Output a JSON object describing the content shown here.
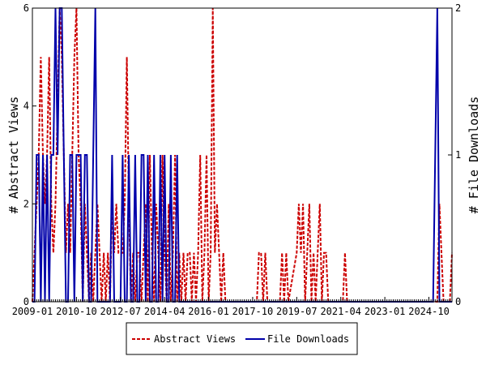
{
  "chart_data": {
    "type": "line",
    "xlabel": "",
    "ylabel_left": "# Abstract Views",
    "ylabel_right": "# File Downloads",
    "ylim_left": [
      0,
      6
    ],
    "ylim_right": [
      0,
      2
    ],
    "yticks_left": [
      "0",
      "2",
      "4",
      "6"
    ],
    "yticks_right": [
      "0",
      "1",
      "2"
    ],
    "xlim": [
      "2009-01",
      "2025-09"
    ],
    "xticks": [
      "2009-01",
      "2010-10",
      "2012-07",
      "2014-04",
      "2016-01",
      "2017-10",
      "2019-07",
      "2021-04",
      "2023-01",
      "2024-10"
    ],
    "grid": false,
    "legend_placement": "bottom-center",
    "series": [
      {
        "name": "Abstract Views",
        "axis": "left",
        "color": "#cc0000",
        "style": "dashed",
        "points": [
          [
            "2009-01",
            0
          ],
          [
            "2009-02",
            1
          ],
          [
            "2009-03",
            2
          ],
          [
            "2009-04",
            3
          ],
          [
            "2009-05",
            5
          ],
          [
            "2009-06",
            3
          ],
          [
            "2009-07",
            2
          ],
          [
            "2009-08",
            3
          ],
          [
            "2009-09",
            5
          ],
          [
            "2009-10",
            2
          ],
          [
            "2009-11",
            1
          ],
          [
            "2009-12",
            2
          ],
          [
            "2010-01",
            4
          ],
          [
            "2010-02",
            6
          ],
          [
            "2010-03",
            5
          ],
          [
            "2010-04",
            3
          ],
          [
            "2010-05",
            1
          ],
          [
            "2010-06",
            2
          ],
          [
            "2010-07",
            1
          ],
          [
            "2010-08",
            3
          ],
          [
            "2010-09",
            5
          ],
          [
            "2010-10",
            6
          ],
          [
            "2010-11",
            3
          ],
          [
            "2010-12",
            2
          ],
          [
            "2011-01",
            0
          ],
          [
            "2011-02",
            2
          ],
          [
            "2011-03",
            1
          ],
          [
            "2011-04",
            0
          ],
          [
            "2011-05",
            1
          ],
          [
            "2011-06",
            0
          ],
          [
            "2011-07",
            1
          ],
          [
            "2011-08",
            2
          ],
          [
            "2011-09",
            1
          ],
          [
            "2011-10",
            0
          ],
          [
            "2011-11",
            1
          ],
          [
            "2011-12",
            0
          ],
          [
            "2012-01",
            1
          ],
          [
            "2012-02",
            0
          ],
          [
            "2012-03",
            2
          ],
          [
            "2012-04",
            1
          ],
          [
            "2012-05",
            2
          ],
          [
            "2012-06",
            1
          ],
          [
            "2012-07",
            1
          ],
          [
            "2012-08",
            1
          ],
          [
            "2012-09",
            2
          ],
          [
            "2012-10",
            5
          ],
          [
            "2012-11",
            2
          ],
          [
            "2012-12",
            0
          ],
          [
            "2013-01",
            1
          ],
          [
            "2013-02",
            0
          ],
          [
            "2013-03",
            1
          ],
          [
            "2013-04",
            1
          ],
          [
            "2013-05",
            0
          ],
          [
            "2013-06",
            1
          ],
          [
            "2013-07",
            2
          ],
          [
            "2013-08",
            0
          ],
          [
            "2013-09",
            3
          ],
          [
            "2013-10",
            1
          ],
          [
            "2013-11",
            0
          ],
          [
            "2013-12",
            2
          ],
          [
            "2014-01",
            1
          ],
          [
            "2014-02",
            0
          ],
          [
            "2014-03",
            3
          ],
          [
            "2014-04",
            1
          ],
          [
            "2014-05",
            0
          ],
          [
            "2014-06",
            2
          ],
          [
            "2014-07",
            0
          ],
          [
            "2014-08",
            1
          ],
          [
            "2014-09",
            3
          ],
          [
            "2014-10",
            0
          ],
          [
            "2014-11",
            1
          ],
          [
            "2014-12",
            0
          ],
          [
            "2015-01",
            1
          ],
          [
            "2015-02",
            0
          ],
          [
            "2015-03",
            1
          ],
          [
            "2015-04",
            1
          ],
          [
            "2015-05",
            0
          ],
          [
            "2015-06",
            1
          ],
          [
            "2015-07",
            0
          ],
          [
            "2015-08",
            1
          ],
          [
            "2015-09",
            3
          ],
          [
            "2015-10",
            0
          ],
          [
            "2015-11",
            1
          ],
          [
            "2015-12",
            3
          ],
          [
            "2016-01",
            0
          ],
          [
            "2016-02",
            1
          ],
          [
            "2016-03",
            6
          ],
          [
            "2016-04",
            1
          ],
          [
            "2016-05",
            2
          ],
          [
            "2016-06",
            1
          ],
          [
            "2016-07",
            0
          ],
          [
            "2016-08",
            1
          ],
          [
            "2016-09",
            0
          ],
          [
            "2016-10",
            0
          ],
          [
            "2016-11",
            0
          ],
          [
            "2016-12",
            0
          ],
          [
            "2017-01",
            0
          ],
          [
            "2017-12",
            0
          ],
          [
            "2018-01",
            1
          ],
          [
            "2018-02",
            1
          ],
          [
            "2018-03",
            0
          ],
          [
            "2018-04",
            1
          ],
          [
            "2018-05",
            0
          ],
          [
            "2018-11",
            0
          ],
          [
            "2018-12",
            1
          ],
          [
            "2019-01",
            0
          ],
          [
            "2019-02",
            1
          ],
          [
            "2019-03",
            0
          ],
          [
            "2019-07",
            1
          ],
          [
            "2019-08",
            2
          ],
          [
            "2019-09",
            1
          ],
          [
            "2019-10",
            2
          ],
          [
            "2019-11",
            0
          ],
          [
            "2019-12",
            1
          ],
          [
            "2020-01",
            2
          ],
          [
            "2020-02",
            0
          ],
          [
            "2020-03",
            1
          ],
          [
            "2020-04",
            0
          ],
          [
            "2020-05",
            1
          ],
          [
            "2020-06",
            2
          ],
          [
            "2020-07",
            0
          ],
          [
            "2020-08",
            1
          ],
          [
            "2020-09",
            1
          ],
          [
            "2020-10",
            0
          ],
          [
            "2021-05",
            0
          ],
          [
            "2021-06",
            1
          ],
          [
            "2021-07",
            0
          ],
          [
            "2025-02",
            0
          ],
          [
            "2025-03",
            2
          ],
          [
            "2025-04",
            1
          ],
          [
            "2025-05",
            0
          ],
          [
            "2025-08",
            0
          ],
          [
            "2025-09",
            1
          ]
        ]
      },
      {
        "name": "File Downloads",
        "axis": "right",
        "color": "#0000aa",
        "style": "solid",
        "points": [
          [
            "2009-01",
            0
          ],
          [
            "2009-02",
            0
          ],
          [
            "2009-03",
            1
          ],
          [
            "2009-04",
            1
          ],
          [
            "2009-05",
            0
          ],
          [
            "2009-06",
            1
          ],
          [
            "2009-07",
            0
          ],
          [
            "2009-08",
            1
          ],
          [
            "2009-09",
            0
          ],
          [
            "2009-10",
            1
          ],
          [
            "2009-11",
            1
          ],
          [
            "2009-12",
            2
          ],
          [
            "2010-01",
            1
          ],
          [
            "2010-02",
            2
          ],
          [
            "2010-03",
            2
          ],
          [
            "2010-04",
            1
          ],
          [
            "2010-05",
            0
          ],
          [
            "2010-06",
            0
          ],
          [
            "2010-07",
            1
          ],
          [
            "2010-08",
            1
          ],
          [
            "2010-09",
            0
          ],
          [
            "2010-10",
            1
          ],
          [
            "2010-11",
            1
          ],
          [
            "2010-12",
            1
          ],
          [
            "2011-01",
            0
          ],
          [
            "2011-02",
            1
          ],
          [
            "2011-03",
            1
          ],
          [
            "2011-04",
            0
          ],
          [
            "2011-05",
            0
          ],
          [
            "2011-06",
            1
          ],
          [
            "2011-07",
            2
          ],
          [
            "2011-08",
            0
          ],
          [
            "2011-09",
            0
          ],
          [
            "2011-10",
            0
          ],
          [
            "2011-11",
            0
          ],
          [
            "2011-12",
            0
          ],
          [
            "2012-01",
            0
          ],
          [
            "2012-02",
            0
          ],
          [
            "2012-03",
            1
          ],
          [
            "2012-04",
            0
          ],
          [
            "2012-05",
            0
          ],
          [
            "2012-06",
            0
          ],
          [
            "2012-07",
            0
          ],
          [
            "2012-08",
            1
          ],
          [
            "2012-09",
            0
          ],
          [
            "2012-10",
            0
          ],
          [
            "2012-11",
            1
          ],
          [
            "2012-12",
            0
          ],
          [
            "2013-01",
            0
          ],
          [
            "2013-02",
            1
          ],
          [
            "2013-03",
            0
          ],
          [
            "2013-04",
            0
          ],
          [
            "2013-05",
            1
          ],
          [
            "2013-06",
            1
          ],
          [
            "2013-07",
            0
          ],
          [
            "2013-08",
            1
          ],
          [
            "2013-09",
            0
          ],
          [
            "2013-10",
            0
          ],
          [
            "2013-11",
            1
          ],
          [
            "2013-12",
            0
          ],
          [
            "2014-01",
            0
          ],
          [
            "2014-02",
            1
          ],
          [
            "2014-03",
            0
          ],
          [
            "2014-04",
            1
          ],
          [
            "2014-05",
            0
          ],
          [
            "2014-06",
            0
          ],
          [
            "2014-07",
            1
          ],
          [
            "2014-08",
            0
          ],
          [
            "2014-09",
            0
          ],
          [
            "2014-10",
            1
          ],
          [
            "2014-11",
            0
          ],
          [
            "2014-12",
            0
          ],
          [
            "2015-01",
            0
          ],
          [
            "2015-02",
            0
          ],
          [
            "2015-03",
            0
          ],
          [
            "2015-04",
            0
          ],
          [
            "2015-05",
            0
          ],
          [
            "2015-06",
            0
          ],
          [
            "2015-07",
            0
          ],
          [
            "2015-08",
            0
          ],
          [
            "2015-09",
            0
          ],
          [
            "2015-10",
            0
          ],
          [
            "2015-11",
            0
          ],
          [
            "2015-12",
            0
          ],
          [
            "2024-10",
            0
          ],
          [
            "2024-11",
            0
          ],
          [
            "2024-12",
            0
          ],
          [
            "2025-01",
            1
          ],
          [
            "2025-02",
            2
          ],
          [
            "2025-03",
            0
          ],
          [
            "2025-04",
            0
          ],
          [
            "2025-05",
            0
          ],
          [
            "2025-06",
            0
          ],
          [
            "2025-07",
            0
          ],
          [
            "2025-08",
            0
          ],
          [
            "2025-09",
            0
          ]
        ]
      }
    ]
  }
}
